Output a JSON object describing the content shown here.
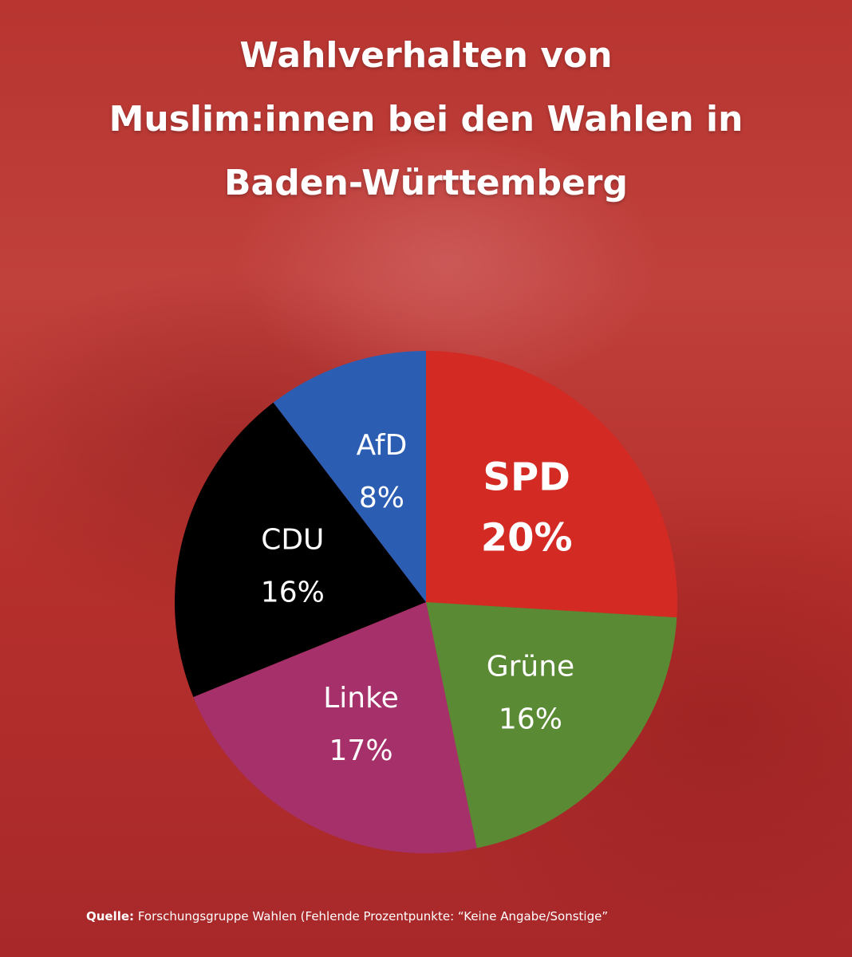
{
  "chart_data": {
    "type": "pie",
    "title_lines": [
      "Wahlverhalten von",
      "Muslim:innen bei den Wahlen in",
      "Baden-Württemberg"
    ],
    "slices": [
      {
        "name": "SPD",
        "label": "20%",
        "value": 20,
        "color": "#d42a24",
        "emphasis": true
      },
      {
        "name": "Grüne",
        "label": "16%",
        "value": 16,
        "color": "#5b8a35"
      },
      {
        "name": "Linke",
        "label": "17%",
        "value": 17,
        "color": "#a6306a"
      },
      {
        "name": "CDU",
        "label": "16%",
        "value": 16,
        "color": "#000000"
      },
      {
        "name": "AfD",
        "label": "8%",
        "value": 8,
        "color": "#2b5db3"
      }
    ],
    "start": "12 o'clock",
    "direction": "clockwise"
  },
  "source": {
    "label": "Quelle:",
    "text": " Forschungsgruppe Wahlen (Fehlende Prozentpunkte: “Keine Angabe/Sonstige”"
  }
}
